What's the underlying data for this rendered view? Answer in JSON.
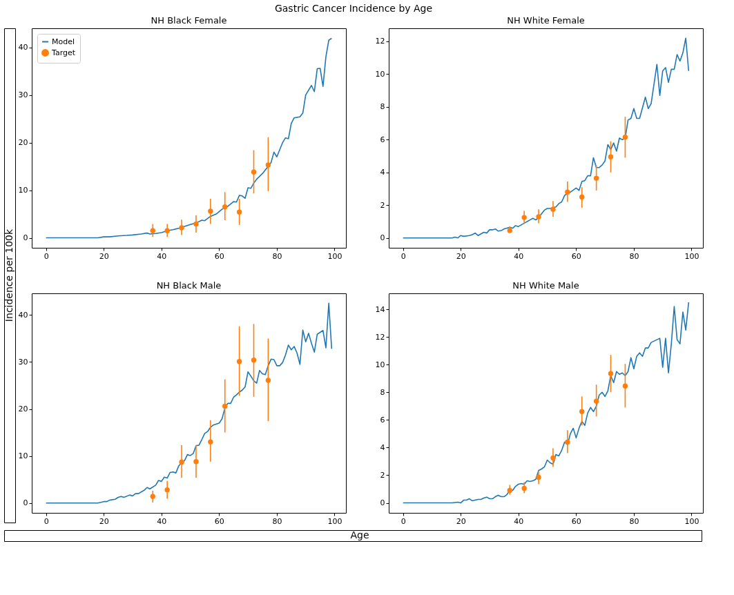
{
  "chart_data": [
    {
      "type": "line",
      "title": "NH Black Female",
      "ylabel": "Incidence per 100k",
      "annotations": [
        "Gastric Cancer Incidence by Age"
      ],
      "xlim": [
        -4.95,
        103.95
      ],
      "xticks": [
        0,
        20,
        40,
        60,
        80,
        100
      ],
      "ylim": [
        -2.1,
        44.0
      ],
      "yticks": [
        0,
        10,
        20,
        30,
        40
      ],
      "grid": false,
      "legend": "top left",
      "series": [
        {
          "name": "Model",
          "type": "line",
          "marker": "none",
          "color": "#1f77b4",
          "x": [
            0,
            18,
            20,
            22,
            25,
            28,
            30,
            33,
            35,
            36,
            38,
            40,
            42,
            44,
            46,
            48,
            50,
            52,
            54,
            55,
            57,
            59,
            61,
            63,
            65,
            66,
            67,
            68,
            69,
            70,
            71,
            72,
            73,
            75,
            77,
            78,
            79,
            80,
            82,
            83,
            84,
            85,
            86,
            88,
            89,
            90,
            92,
            93,
            94,
            95,
            96,
            97,
            98,
            99
          ],
          "values": [
            0,
            0,
            0.2,
            0.2,
            0.4,
            0.5,
            0.6,
            0.8,
            1.0,
            0.8,
            0.9,
            1.1,
            1.5,
            1.7,
            2.0,
            2.4,
            2.8,
            3.1,
            3.7,
            3.6,
            4.5,
            5.0,
            6.0,
            6.6,
            7.6,
            7.5,
            8.9,
            8.8,
            8.3,
            10.5,
            10.4,
            11.5,
            12.3,
            13.5,
            15.0,
            15.8,
            18.0,
            17.0,
            20.0,
            21.0,
            20.8,
            24.0,
            25.2,
            25.4,
            26.2,
            30.0,
            32.0,
            30.7,
            35.5,
            35.6,
            31.8,
            38.0,
            41.5,
            41.9
          ]
        },
        {
          "name": "Target",
          "type": "scatter",
          "marker": "circle",
          "color": "#ff7f0e",
          "x": [
            37,
            42,
            47,
            52,
            57,
            62,
            67,
            72,
            77
          ],
          "values": [
            1.5,
            1.5,
            2.1,
            2.9,
            5.6,
            6.5,
            5.4,
            13.8,
            15.3
          ],
          "errors": [
            [
              0.2,
              2.9
            ],
            [
              0.2,
              2.9
            ],
            [
              0.6,
              3.8
            ],
            [
              1.1,
              4.7
            ],
            [
              2.9,
              8.2
            ],
            [
              3.7,
              9.6
            ],
            [
              2.7,
              8.2
            ],
            [
              9.3,
              18.4
            ],
            [
              9.8,
              21.1
            ]
          ]
        }
      ]
    },
    {
      "type": "line",
      "title": "NH White Female",
      "xlim": [
        -4.95,
        103.95
      ],
      "xticks": [
        0,
        20,
        40,
        60,
        80,
        100
      ],
      "ylim": [
        -0.6,
        12.8
      ],
      "yticks": [
        0,
        2,
        4,
        6,
        8,
        10,
        12
      ],
      "grid": false,
      "series": [
        {
          "type": "line",
          "marker": "none",
          "color": "#1f77b4",
          "x": [
            0,
            17,
            18,
            19,
            20,
            21,
            23,
            24,
            25,
            26,
            28,
            29,
            30,
            31,
            32,
            33,
            34,
            35,
            37,
            38,
            39,
            40,
            42,
            44,
            45,
            46,
            47,
            49,
            50,
            51,
            53,
            54,
            55,
            56,
            58,
            60,
            61,
            62,
            63,
            64,
            65,
            66,
            67,
            68,
            69,
            70,
            71,
            72,
            73,
            74,
            75,
            76,
            77,
            78,
            79,
            80,
            81,
            82,
            84,
            85,
            86,
            88,
            89,
            90,
            91,
            92,
            93,
            94,
            95,
            96,
            97,
            98,
            99
          ],
          "values": [
            0,
            0,
            0.05,
            0,
            0.15,
            0.1,
            0.15,
            0.2,
            0.3,
            0.15,
            0.35,
            0.3,
            0.5,
            0.5,
            0.55,
            0.42,
            0.45,
            0.55,
            0.65,
            0.6,
            0.75,
            0.7,
            0.9,
            1.1,
            1.2,
            1.1,
            1.25,
            1.7,
            1.8,
            1.8,
            1.9,
            2.1,
            2.2,
            2.6,
            2.8,
            3.05,
            2.9,
            3.45,
            3.5,
            3.8,
            3.8,
            4.9,
            4.3,
            4.3,
            4.45,
            4.7,
            5.7,
            5.4,
            5.8,
            5.3,
            6.1,
            6.0,
            6.1,
            7.2,
            7.3,
            7.9,
            7.3,
            7.3,
            8.6,
            7.9,
            8.2,
            10.6,
            8.7,
            10.2,
            10.4,
            9.5,
            10.3,
            10.3,
            11.2,
            10.8,
            11.3,
            12.2,
            10.2
          ]
        },
        {
          "type": "scatter",
          "marker": "circle",
          "color": "#ff7f0e",
          "x": [
            37,
            42,
            47,
            52,
            57,
            62,
            67,
            72,
            77
          ],
          "values": [
            0.45,
            1.25,
            1.3,
            1.75,
            2.8,
            2.5,
            3.65,
            4.95,
            6.15
          ],
          "errors": [
            [
              0.35,
              0.7
            ],
            [
              0.85,
              1.65
            ],
            [
              0.9,
              1.75
            ],
            [
              1.3,
              2.25
            ],
            [
              2.2,
              3.45
            ],
            [
              1.85,
              3.1
            ],
            [
              2.9,
              4.45
            ],
            [
              4.0,
              5.9
            ],
            [
              4.9,
              7.4
            ]
          ]
        }
      ]
    },
    {
      "type": "line",
      "title": "NH Black Male",
      "xlabel": "Age",
      "xlim": [
        -4.95,
        103.95
      ],
      "xticks": [
        0,
        20,
        40,
        60,
        80,
        100
      ],
      "ylim": [
        -2.1,
        44.6
      ],
      "yticks": [
        0,
        10,
        20,
        30,
        40
      ],
      "grid": false,
      "series": [
        {
          "type": "line",
          "marker": "none",
          "color": "#1f77b4",
          "x": [
            0,
            18,
            20,
            21,
            22,
            24,
            25,
            26,
            27,
            29,
            30,
            31,
            32,
            34,
            35,
            36,
            38,
            39,
            40,
            41,
            42,
            43,
            44,
            45,
            46,
            47,
            48,
            49,
            50,
            51,
            52,
            53,
            54,
            55,
            56,
            57,
            58,
            60,
            61,
            62,
            63,
            64,
            65,
            66,
            67,
            68,
            69,
            70,
            71,
            72,
            73,
            74,
            75,
            76,
            77,
            78,
            79,
            80,
            81,
            82,
            83,
            84,
            85,
            86,
            87,
            88,
            89,
            90,
            91,
            92,
            93,
            94,
            96,
            97,
            98,
            99
          ],
          "values": [
            0,
            0,
            0.3,
            0.3,
            0.6,
            0.8,
            1.2,
            1.4,
            1.2,
            1.7,
            1.5,
            2.0,
            2.0,
            2.7,
            3.3,
            3.0,
            3.8,
            4.8,
            4.6,
            5.5,
            5.3,
            6.5,
            6.6,
            6.4,
            7.9,
            8.6,
            9.0,
            10.3,
            10.1,
            10.5,
            12.2,
            12.3,
            13.5,
            14.8,
            15.2,
            16.1,
            16.6,
            17.0,
            17.9,
            20.2,
            21.2,
            21.2,
            22.5,
            23.0,
            23.6,
            24.0,
            24.7,
            27.9,
            27.0,
            26.0,
            25.5,
            28.2,
            27.5,
            27.3,
            29.2,
            30.6,
            30.5,
            29.2,
            29.2,
            29.9,
            31.5,
            33.6,
            32.6,
            33.3,
            31.9,
            29.5,
            36.8,
            34.3,
            36.1,
            34.0,
            32.1,
            35.9,
            36.7,
            33.0,
            42.5,
            32.8
          ]
        },
        {
          "type": "scatter",
          "marker": "circle",
          "color": "#ff7f0e",
          "x": [
            37,
            42,
            47,
            52,
            57,
            62,
            67,
            72,
            77
          ],
          "values": [
            1.4,
            2.8,
            8.7,
            8.8,
            13.0,
            20.6,
            30.1,
            30.4,
            26.1
          ],
          "errors": [
            [
              0.1,
              2.6
            ],
            [
              0.9,
              4.7
            ],
            [
              5.4,
              12.3
            ],
            [
              5.4,
              12.3
            ],
            [
              8.8,
              17.6
            ],
            [
              15.0,
              26.3
            ],
            [
              22.8,
              37.6
            ],
            [
              22.6,
              38.1
            ],
            [
              17.4,
              35.0
            ]
          ]
        }
      ]
    },
    {
      "type": "line",
      "title": "NH White Male",
      "xlim": [
        -4.95,
        103.95
      ],
      "xticks": [
        0,
        20,
        40,
        60,
        80,
        100
      ],
      "ylim": [
        -0.72,
        15.15
      ],
      "yticks": [
        0,
        2,
        4,
        6,
        8,
        10,
        12,
        14
      ],
      "grid": false,
      "series": [
        {
          "type": "line",
          "marker": "none",
          "color": "#1f77b4",
          "x": [
            0,
            17,
            19,
            20,
            21,
            22,
            23,
            24,
            25,
            26,
            27,
            28,
            29,
            30,
            31,
            32,
            33,
            34,
            35,
            36,
            37,
            38,
            39,
            40,
            41,
            42,
            43,
            44,
            45,
            46,
            47,
            48,
            49,
            50,
            51,
            52,
            53,
            54,
            55,
            56,
            57,
            58,
            59,
            60,
            61,
            62,
            63,
            64,
            65,
            66,
            67,
            68,
            69,
            70,
            71,
            72,
            73,
            74,
            75,
            76,
            77,
            78,
            79,
            80,
            81,
            82,
            83,
            84,
            85,
            86,
            87,
            88,
            89,
            90,
            91,
            92,
            93,
            94,
            95,
            96,
            97,
            98,
            99
          ],
          "values": [
            0,
            0,
            0.05,
            0,
            0.2,
            0.2,
            0.3,
            0.15,
            0.2,
            0.25,
            0.25,
            0.35,
            0.42,
            0.3,
            0.3,
            0.45,
            0.55,
            0.45,
            0.45,
            0.6,
            0.9,
            0.9,
            1.2,
            1.35,
            1.4,
            1.35,
            1.6,
            1.55,
            1.6,
            1.7,
            2.35,
            2.45,
            2.6,
            3.1,
            2.9,
            2.8,
            3.5,
            3.4,
            3.8,
            4.4,
            4.2,
            5.0,
            5.4,
            4.7,
            5.4,
            5.9,
            5.6,
            6.5,
            6.9,
            6.6,
            7.0,
            7.8,
            8.0,
            7.7,
            8.1,
            9.2,
            8.7,
            9.5,
            9.3,
            9.4,
            9.2,
            9.5,
            10.5,
            9.7,
            10.6,
            10.85,
            10.6,
            11.2,
            11.2,
            11.6,
            11.7,
            11.8,
            11.9,
            9.8,
            11.9,
            9.4,
            11.5,
            14.2,
            11.8,
            11.5,
            13.8,
            12.5,
            14.5
          ]
        },
        {
          "type": "scatter",
          "marker": "circle",
          "color": "#ff7f0e",
          "x": [
            37,
            42,
            47,
            52,
            57,
            62,
            67,
            72,
            77
          ],
          "values": [
            0.9,
            1.05,
            1.85,
            3.25,
            4.4,
            6.6,
            7.35,
            9.35,
            8.45
          ],
          "errors": [
            [
              0.6,
              1.3
            ],
            [
              0.7,
              1.5
            ],
            [
              1.35,
              2.3
            ],
            [
              2.6,
              3.95
            ],
            [
              3.6,
              5.25
            ],
            [
              5.6,
              7.7
            ],
            [
              6.25,
              8.55
            ],
            [
              8.0,
              10.7
            ],
            [
              6.9,
              10.05
            ]
          ]
        }
      ]
    }
  ]
}
